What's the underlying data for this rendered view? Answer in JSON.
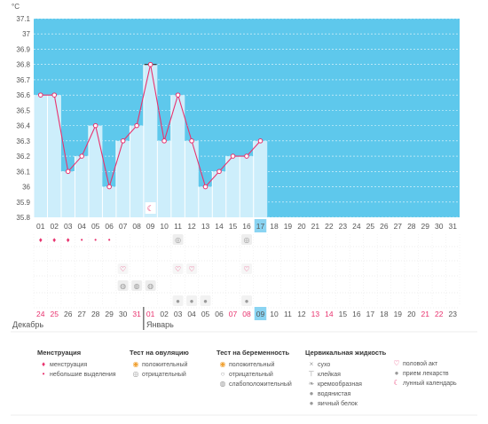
{
  "unit_label": "°C",
  "colors": {
    "bg_blue": "#5ec8ec",
    "bar_fill": "#cdeefb",
    "line": "#e8326e",
    "today_highlight": "#8ad4f2",
    "weekend_red": "#e8326e"
  },
  "chart_data": {
    "type": "line",
    "title": "",
    "ylabel": "°C",
    "ylim": [
      35.8,
      37.1
    ],
    "yticks": [
      "35.8",
      "35.9",
      "36",
      "36.1",
      "36.2",
      "36.3",
      "36.4",
      "36.5",
      "36.6",
      "36.7",
      "36.8",
      "36.9",
      "37",
      "37.1"
    ],
    "categories": [
      "01",
      "02",
      "03",
      "04",
      "05",
      "06",
      "07",
      "08",
      "09",
      "10",
      "11",
      "12",
      "13",
      "14",
      "15",
      "16",
      "17",
      "18",
      "19",
      "20",
      "21",
      "22",
      "23",
      "24",
      "25",
      "26",
      "27",
      "28",
      "29",
      "30",
      "31"
    ],
    "values": [
      36.6,
      36.6,
      36.1,
      36.2,
      36.4,
      36.0,
      36.3,
      36.4,
      36.8,
      36.3,
      36.6,
      36.3,
      36.0,
      36.1,
      36.2,
      36.2,
      36.3,
      null,
      null,
      null,
      null,
      null,
      null,
      null,
      null,
      null,
      null,
      null,
      null,
      null,
      null
    ],
    "highlight_day": "17",
    "grid": true
  },
  "dates": {
    "days": [
      "24",
      "25",
      "26",
      "27",
      "28",
      "29",
      "30",
      "31",
      "01",
      "02",
      "03",
      "04",
      "05",
      "06",
      "07",
      "08",
      "09",
      "10",
      "11",
      "12",
      "13",
      "14",
      "15",
      "16",
      "17",
      "18",
      "19",
      "20",
      "21",
      "22",
      "23"
    ],
    "red_indexes": [
      0,
      1,
      7,
      8,
      14,
      15,
      20,
      21,
      28,
      29
    ],
    "today_index": 16,
    "month_prev": "Декабрь",
    "month_next": "Январь"
  },
  "markers": {
    "menstruation_days": [
      0,
      1,
      2,
      3,
      4,
      5
    ],
    "ovulation_test_days": [
      10,
      15
    ],
    "intercourse_days": [
      6,
      10,
      11,
      15
    ],
    "pregnancy_weak_days": [
      6,
      7,
      8
    ],
    "cervical_days": [
      10,
      11,
      12,
      15
    ],
    "moon_day": 8
  },
  "legend": {
    "menstruation": {
      "title": "Менструация",
      "items": [
        {
          "icon": "drops-icon",
          "glyph": "♦",
          "label": "менструация"
        },
        {
          "icon": "drop-icon",
          "glyph": "•",
          "label": "небольшие выделения"
        }
      ]
    },
    "ovulation": {
      "title": "Тест на овуляцию",
      "items": [
        {
          "icon": "ovulation-positive-icon",
          "glyph": "◉",
          "label": "положительный"
        },
        {
          "icon": "ovulation-negative-icon",
          "glyph": "◎",
          "label": "отрицательный"
        }
      ]
    },
    "pregnancy": {
      "title": "Тест на беременность",
      "items": [
        {
          "icon": "pregnancy-positive-icon",
          "glyph": "◉",
          "label": "положительный"
        },
        {
          "icon": "pregnancy-negative-icon",
          "glyph": "○",
          "label": "отрицательный"
        },
        {
          "icon": "pregnancy-weak-icon",
          "glyph": "◍",
          "label": "слабоположительный"
        }
      ]
    },
    "cervical": {
      "title": "Цервикальная жидкость",
      "items": [
        {
          "icon": "dry-icon",
          "glyph": "×",
          "label": "сухо"
        },
        {
          "icon": "sticky-icon",
          "glyph": "⊤",
          "label": "клейкая"
        },
        {
          "icon": "creamy-icon",
          "glyph": "❧",
          "label": "кремообразная"
        },
        {
          "icon": "watery-icon",
          "glyph": "●",
          "label": "водянистая"
        },
        {
          "icon": "egg-white-icon",
          "glyph": "●",
          "label": "яичный белок"
        }
      ]
    },
    "other": {
      "items": [
        {
          "icon": "heart-icon",
          "glyph": "♡",
          "label": "половой акт"
        },
        {
          "icon": "pill-icon",
          "glyph": "●",
          "label": "прием лекарств"
        },
        {
          "icon": "moon-icon",
          "glyph": "☾",
          "label": "лунный календарь"
        }
      ]
    }
  }
}
